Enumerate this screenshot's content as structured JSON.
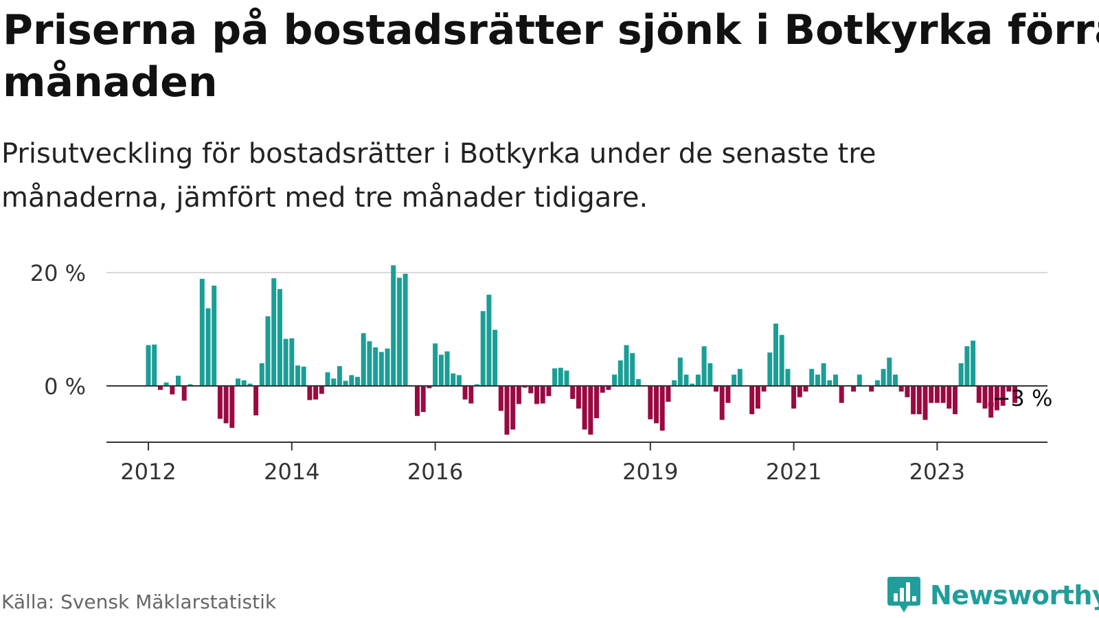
{
  "header": {
    "title_line1": "Priserna på bostadsrätter sjönk i Botkyrka förra",
    "title_line2": "månaden",
    "subtitle": "Prisutveckling för bostadsrätter i Botkyrka under de senaste tre månaderna, jämfört med tre månader tidigare."
  },
  "footer": {
    "source": "Källa: Svensk Mäklarstatistik",
    "brand": "Newsworthy"
  },
  "colors": {
    "positive": "#1a9e96",
    "negative": "#9a0a42",
    "axis": "#333333",
    "grid": "#d9d9d9",
    "brand": "#1f9e9a"
  },
  "chart_data": {
    "type": "bar",
    "title": "Priserna på bostadsrätter sjönk i Botkyrka förra månaden",
    "xlabel": "",
    "ylabel": "",
    "unit": "%",
    "ylim": [
      -10,
      21
    ],
    "yticks": [
      0,
      20
    ],
    "ytick_labels": [
      "0 %",
      "20 %"
    ],
    "x_tick_labels": [
      {
        "label": "2012",
        "index": 0
      },
      {
        "label": "2014",
        "index": 24
      },
      {
        "label": "2016",
        "index": 48
      },
      {
        "label": "2019",
        "index": 84
      },
      {
        "label": "2021",
        "index": 108
      },
      {
        "label": "2023",
        "index": 132
      }
    ],
    "series": [
      {
        "name": "Prisutveckling",
        "start": "2012-01",
        "values": [
          7.2,
          7.3,
          -0.7,
          0.6,
          -1.5,
          1.8,
          -2.6,
          0.3,
          0,
          18.9,
          13.7,
          17.7,
          -5.8,
          -6.6,
          -7.4,
          1.3,
          1.0,
          0.4,
          -5.2,
          4.0,
          12.3,
          19.0,
          17.1,
          8.3,
          8.4,
          3.6,
          3.4,
          -2.5,
          -2.4,
          -1.4,
          2.4,
          1.3,
          3.5,
          0.9,
          1.9,
          1.6,
          9.3,
          7.9,
          6.8,
          6.0,
          6.6,
          21.3,
          19.1,
          19.8,
          0,
          -5.3,
          -4.6,
          -0.4,
          7.5,
          5.5,
          6.1,
          2.2,
          1.9,
          -2.4,
          -3.1,
          0.3,
          13.2,
          16.1,
          9.9,
          -4.4,
          -8.6,
          -7.7,
          -3.2,
          -0.3,
          -1.3,
          -3.2,
          -3.1,
          -1.8,
          3.1,
          3.2,
          2.7,
          -2.3,
          -4.0,
          -7.7,
          -8.6,
          -5.7,
          -1.2,
          -0.7,
          2.0,
          4.5,
          7.2,
          5.8,
          1.2,
          0,
          -5.9,
          -6.6,
          -7.9,
          -2.8,
          1.0,
          5.0,
          2.0,
          0.4,
          2.0,
          7.0,
          4.0,
          -1.0,
          -6.0,
          -3.0,
          2.0,
          3.0,
          0,
          -5.0,
          -4.0,
          -1.0,
          5.9,
          11.0,
          9.0,
          3.0,
          -4.0,
          -2.0,
          -1.0,
          3.0,
          2.0,
          4.0,
          1.0,
          2.0,
          -3.0,
          0,
          -1.0,
          2.0,
          0,
          -1.0,
          1.0,
          3.0,
          5.0,
          2.0,
          -1.0,
          -2.0,
          -5.0,
          -5.0,
          -6.0,
          -3.0,
          -3.0,
          -3.0,
          -4.0,
          -5.0,
          4.0,
          7.0,
          8.0,
          -3.0,
          -4.0,
          -5.6,
          -4.3,
          -3.5,
          -1.0,
          -3.0
        ],
        "highlight_label": "−3 %"
      }
    ]
  }
}
